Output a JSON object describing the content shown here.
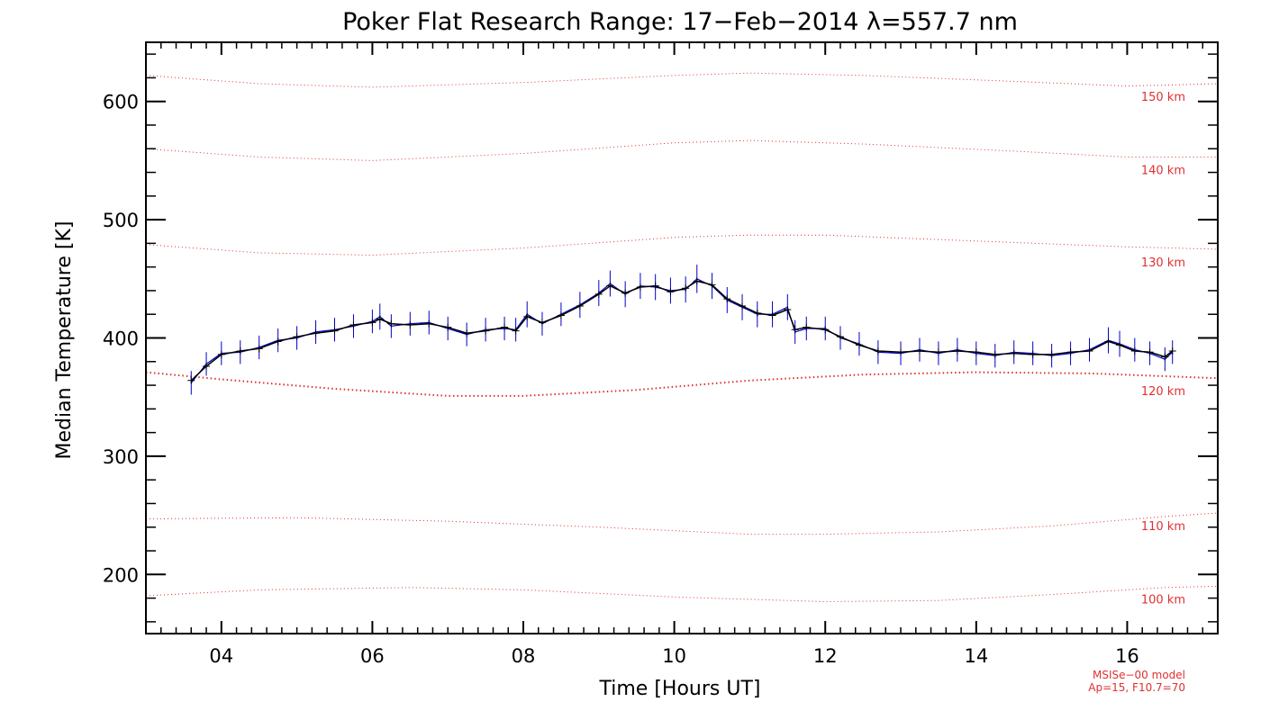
{
  "chart_data": {
    "type": "line",
    "title": "Poker Flat Research Range: 17−Feb−2014 λ=557.7 nm",
    "xlabel": "Time [Hours UT]",
    "ylabel": "Median Temperature [K]",
    "xlim": [
      3.0,
      17.2
    ],
    "ylim": [
      150,
      650
    ],
    "x_ticks": [
      4,
      6,
      8,
      10,
      12,
      14,
      16
    ],
    "x_tick_labels": [
      "04",
      "06",
      "08",
      "10",
      "12",
      "14",
      "16"
    ],
    "y_ticks": [
      200,
      300,
      400,
      500,
      600
    ],
    "y_tick_labels": [
      "200",
      "300",
      "400",
      "500",
      "600"
    ],
    "grid": false,
    "series": [
      {
        "name": "",
        "color": "#0000cc",
        "x": [
          3.6,
          3.8,
          4.0,
          4.25,
          4.5,
          4.75,
          5.0,
          5.25,
          5.5,
          5.75,
          6.0,
          6.1,
          6.25,
          6.5,
          6.75,
          7.0,
          7.25,
          7.5,
          7.75,
          7.9,
          8.05,
          8.25,
          8.5,
          8.75,
          9.0,
          9.15,
          9.35,
          9.55,
          9.75,
          9.95,
          10.15,
          10.3,
          10.5,
          10.7,
          10.9,
          11.1,
          11.3,
          11.5,
          11.6,
          11.75,
          12.0,
          12.2,
          12.45,
          12.7,
          13.0,
          13.25,
          13.5,
          13.75,
          14.0,
          14.25,
          14.5,
          14.75,
          15.0,
          15.25,
          15.5,
          15.75,
          15.9,
          16.1,
          16.3,
          16.5,
          16.6
        ],
        "y": [
          362,
          378,
          387,
          388,
          392,
          398,
          400,
          405,
          407,
          410,
          414,
          418,
          410,
          412,
          413,
          408,
          403,
          407,
          408,
          407,
          420,
          412,
          420,
          428,
          438,
          446,
          437,
          444,
          443,
          440,
          441,
          450,
          444,
          432,
          426,
          420,
          420,
          426,
          405,
          408,
          408,
          400,
          395,
          388,
          387,
          390,
          387,
          390,
          387,
          385,
          388,
          387,
          385,
          387,
          390,
          398,
          395,
          390,
          387,
          382,
          388
        ],
        "error": [
          10,
          10,
          10,
          10,
          10,
          10,
          10,
          10,
          10,
          10,
          10,
          11,
          10,
          10,
          10,
          10,
          10,
          10,
          10,
          10,
          11,
          10,
          10,
          11,
          11,
          11,
          11,
          11,
          11,
          11,
          11,
          12,
          11,
          11,
          11,
          11,
          11,
          11,
          10,
          10,
          10,
          10,
          10,
          10,
          10,
          10,
          10,
          10,
          10,
          10,
          10,
          10,
          10,
          10,
          10,
          11,
          11,
          10,
          10,
          10,
          10
        ]
      },
      {
        "name": "",
        "color": "#000000",
        "x": [
          3.6,
          3.8,
          4.0,
          4.25,
          4.5,
          4.75,
          5.0,
          5.25,
          5.5,
          5.75,
          6.0,
          6.1,
          6.25,
          6.5,
          6.75,
          7.0,
          7.25,
          7.5,
          7.75,
          7.9,
          8.05,
          8.25,
          8.5,
          8.75,
          9.0,
          9.15,
          9.35,
          9.55,
          9.75,
          9.95,
          10.15,
          10.3,
          10.5,
          10.7,
          10.9,
          11.1,
          11.3,
          11.5,
          11.6,
          11.75,
          12.0,
          12.2,
          12.45,
          12.7,
          13.0,
          13.25,
          13.5,
          13.75,
          14.0,
          14.25,
          14.5,
          14.75,
          15.0,
          15.25,
          15.5,
          15.75,
          15.9,
          16.1,
          16.3,
          16.5,
          16.6
        ],
        "y": [
          364,
          376,
          386,
          389,
          391,
          397,
          401,
          404,
          406,
          411,
          413,
          416,
          412,
          411,
          412,
          409,
          404,
          406,
          409,
          406,
          418,
          413,
          419,
          427,
          437,
          444,
          438,
          443,
          444,
          439,
          442,
          448,
          445,
          433,
          427,
          421,
          419,
          424,
          407,
          409,
          407,
          401,
          394,
          389,
          388,
          389,
          388,
          389,
          388,
          386,
          387,
          386,
          386,
          388,
          389,
          397,
          394,
          389,
          388,
          384,
          389
        ]
      }
    ],
    "model_curves": [
      {
        "label": "150 km",
        "color": "#e03030",
        "x": [
          3.0,
          4.5,
          6.0,
          8.0,
          10.0,
          11.0,
          12.5,
          14.5,
          16.0,
          17.2
        ],
        "y": [
          622,
          615,
          612,
          616,
          622,
          624,
          622,
          617,
          613,
          615
        ]
      },
      {
        "label": "140 km",
        "color": "#e03030",
        "x": [
          3.0,
          4.5,
          6.0,
          8.0,
          10.0,
          11.0,
          12.5,
          14.5,
          16.0,
          17.2
        ],
        "y": [
          560,
          553,
          550,
          556,
          565,
          567,
          564,
          558,
          553,
          553
        ]
      },
      {
        "label": "130 km",
        "color": "#e03030",
        "x": [
          3.0,
          4.5,
          6.0,
          8.0,
          10.0,
          11.0,
          12.0,
          14.0,
          16.0,
          17.2
        ],
        "y": [
          479,
          472,
          470,
          476,
          485,
          487,
          487,
          482,
          477,
          475
        ]
      },
      {
        "label": "120 km",
        "color": "#e03030",
        "x": [
          3.0,
          4.0,
          5.5,
          7.0,
          8.0,
          9.5,
          11.0,
          12.5,
          14.0,
          15.5,
          17.2
        ],
        "y": [
          371,
          365,
          357,
          351,
          351,
          356,
          364,
          369,
          371,
          370,
          366
        ]
      },
      {
        "label": "110 km",
        "color": "#e03030",
        "x": [
          3.0,
          5.0,
          7.0,
          9.0,
          11.0,
          12.0,
          13.5,
          15.0,
          16.5,
          17.2
        ],
        "y": [
          247,
          248,
          245,
          240,
          234,
          234,
          236,
          241,
          249,
          252
        ]
      },
      {
        "label": "100 km",
        "color": "#e03030",
        "x": [
          3.0,
          4.5,
          6.5,
          8.0,
          10.0,
          12.0,
          13.5,
          15.0,
          16.5,
          17.2
        ],
        "y": [
          182,
          187,
          189,
          187,
          181,
          177,
          178,
          183,
          189,
          190
        ]
      }
    ],
    "annotations": [
      "MSISe−00 model",
      "Ap=15, F10.7=70"
    ]
  }
}
